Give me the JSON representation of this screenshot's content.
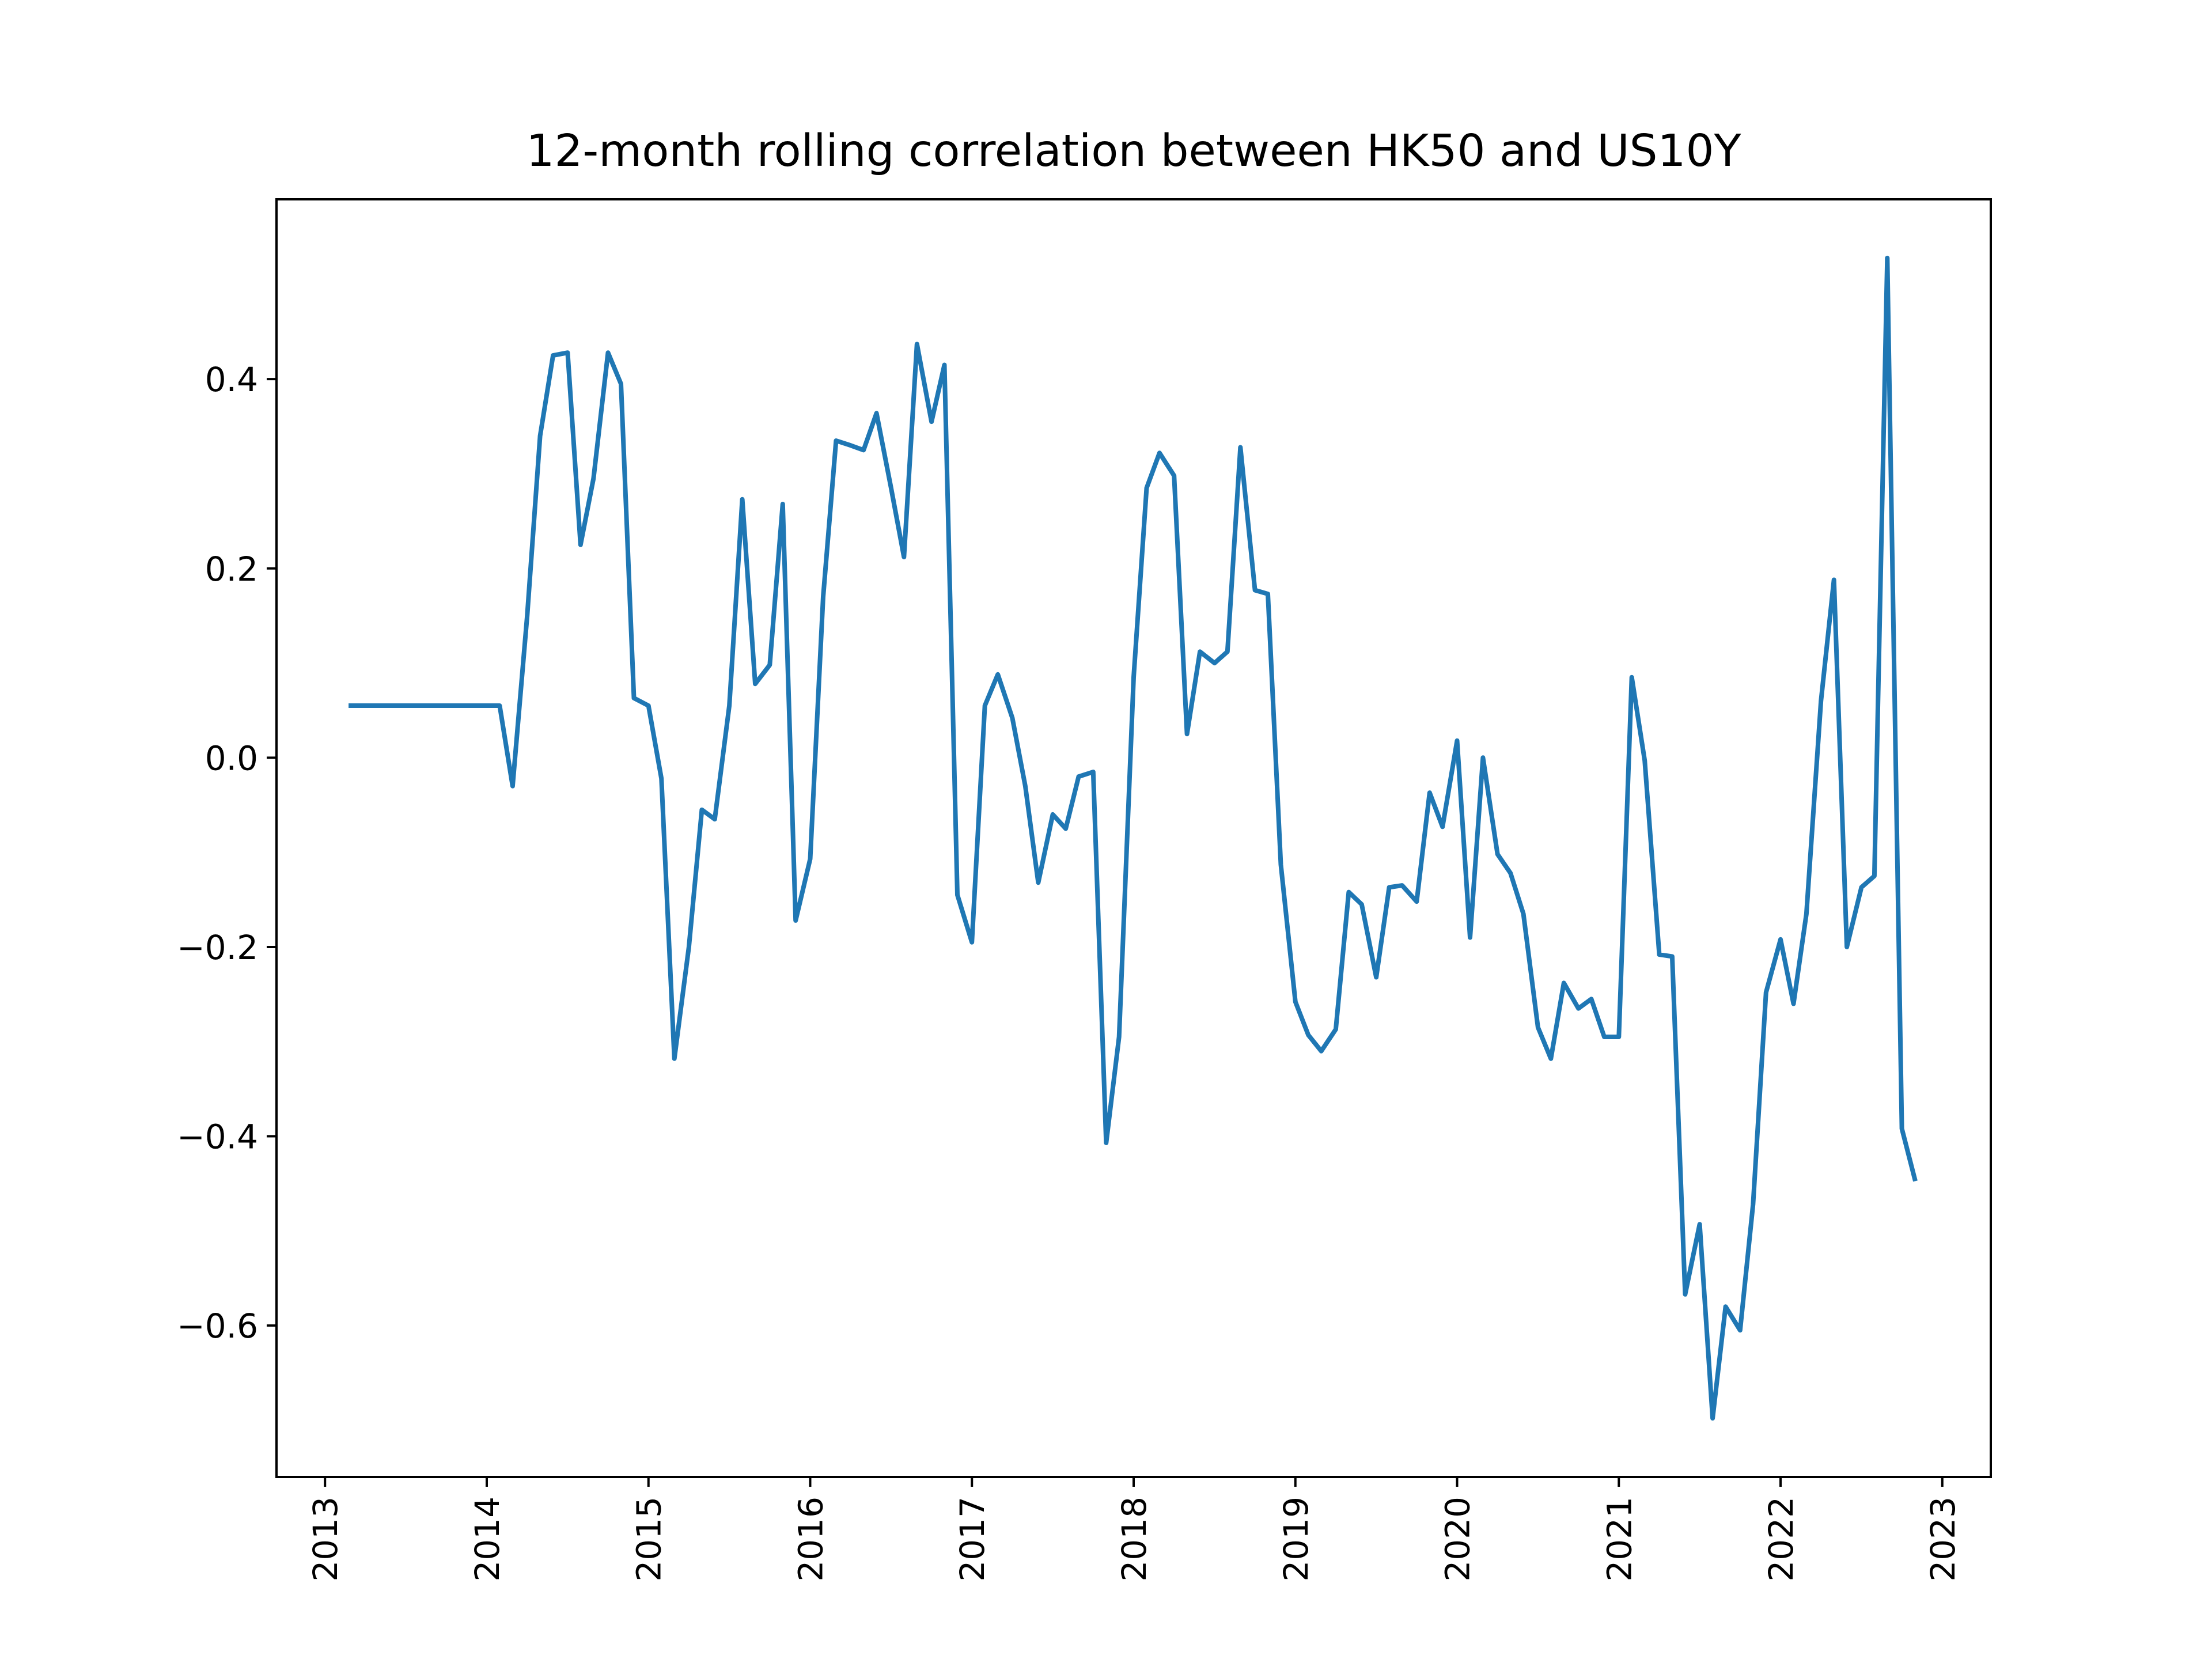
{
  "chart_data": {
    "type": "line",
    "title": "12-month rolling correlation between HK50 and US10Y",
    "xlabel": "",
    "ylabel": "",
    "xlim": [
      2012.7,
      2023.3
    ],
    "ylim": [
      -0.76,
      0.59
    ],
    "x_ticks": [
      2013,
      2014,
      2015,
      2016,
      2017,
      2018,
      2019,
      2020,
      2021,
      2022,
      2023
    ],
    "x_tick_labels": [
      "2013",
      "2014",
      "2015",
      "2016",
      "2017",
      "2018",
      "2019",
      "2020",
      "2021",
      "2022",
      "2023"
    ],
    "y_ticks": [
      -0.6,
      -0.4,
      -0.2,
      0.0,
      0.2,
      0.4
    ],
    "y_tick_labels": [
      "−0.6",
      "−0.4",
      "−0.2",
      "0.0",
      "0.2",
      "0.4"
    ],
    "grid": false,
    "legend": "none",
    "color": "#1f77b4",
    "series": [
      {
        "x": [
          2013.16,
          2014.08,
          2014.16,
          2014.25,
          2014.33,
          2014.41,
          2014.5,
          2014.58,
          2014.66,
          2014.75,
          2014.83,
          2014.91,
          2015.0,
          2015.08,
          2015.16,
          2015.25,
          2015.33,
          2015.41,
          2015.5,
          2015.58,
          2015.66,
          2015.75,
          2015.83,
          2015.91,
          2016.0,
          2016.08,
          2016.16,
          2016.25,
          2016.33,
          2016.41,
          2016.5,
          2016.58,
          2016.66,
          2016.75,
          2016.83,
          2016.91,
          2017.0,
          2017.08,
          2017.16,
          2017.25,
          2017.33,
          2017.41,
          2017.5,
          2017.58,
          2017.66,
          2017.75,
          2017.83,
          2017.91,
          2018.0,
          2018.08,
          2018.16,
          2018.25,
          2018.33,
          2018.41,
          2018.5,
          2018.58,
          2018.66,
          2018.75,
          2018.83,
          2018.91,
          2019.0,
          2019.08,
          2019.16,
          2019.25,
          2019.33,
          2019.41,
          2019.5,
          2019.58,
          2019.66,
          2019.75,
          2019.83,
          2019.91,
          2020.0,
          2020.08,
          2020.16,
          2020.25,
          2020.33,
          2020.41,
          2020.5,
          2020.58,
          2020.66,
          2020.75,
          2020.83,
          2020.91,
          2021.0,
          2021.08,
          2021.16,
          2021.25,
          2021.33,
          2021.41,
          2021.5,
          2021.58,
          2021.66,
          2021.75,
          2021.83,
          2021.91,
          2022.0,
          2022.08,
          2022.16,
          2022.25,
          2022.33,
          2022.41,
          2022.5,
          2022.58,
          2022.66,
          2022.75,
          2022.83
        ],
        "values": [
          0.055,
          0.055,
          -0.03,
          0.15,
          0.34,
          0.425,
          0.428,
          0.225,
          0.295,
          0.428,
          0.395,
          0.063,
          0.055,
          -0.022,
          -0.318,
          -0.2,
          -0.055,
          -0.065,
          0.055,
          0.273,
          0.078,
          0.098,
          0.268,
          -0.172,
          -0.107,
          0.17,
          0.335,
          0.33,
          0.325,
          0.364,
          0.285,
          0.212,
          0.437,
          0.355,
          0.415,
          -0.145,
          -0.195,
          0.055,
          0.088,
          0.042,
          -0.03,
          -0.132,
          -0.06,
          -0.075,
          -0.02,
          -0.015,
          -0.407,
          -0.295,
          0.085,
          0.285,
          0.322,
          0.298,
          0.025,
          0.112,
          0.1,
          0.112,
          0.328,
          0.177,
          0.173,
          -0.113,
          -0.258,
          -0.293,
          -0.31,
          -0.287,
          -0.142,
          -0.155,
          -0.232,
          -0.137,
          -0.135,
          -0.152,
          -0.037,
          -0.073,
          0.018,
          -0.19,
          0.0,
          -0.102,
          -0.122,
          -0.165,
          -0.285,
          -0.318,
          -0.238,
          -0.265,
          -0.255,
          -0.295,
          -0.295,
          0.085,
          -0.003,
          -0.208,
          -0.21,
          -0.567,
          -0.493,
          -0.698,
          -0.58,
          -0.605,
          -0.472,
          -0.248,
          -0.192,
          -0.26,
          -0.165,
          0.06,
          0.188,
          -0.2,
          -0.137,
          -0.125,
          0.528,
          -0.392,
          -0.445
        ]
      }
    ]
  }
}
